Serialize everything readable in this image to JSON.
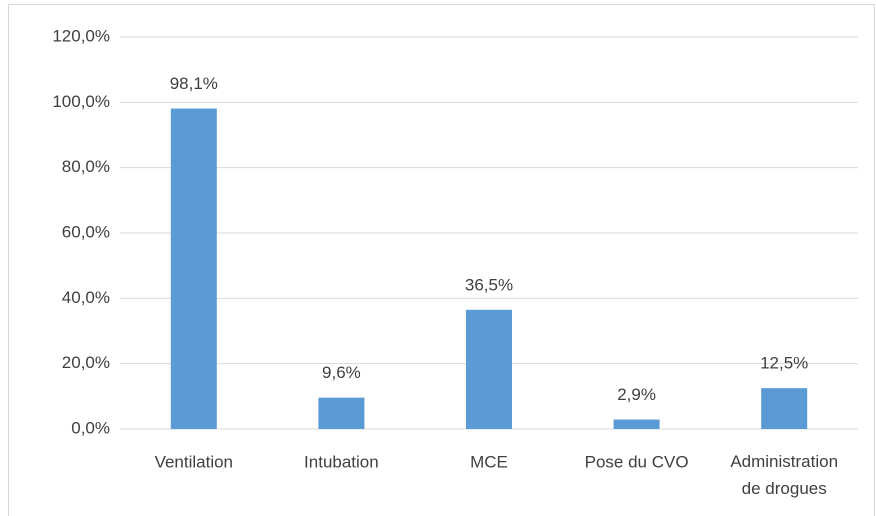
{
  "chart_data": {
    "type": "bar",
    "categories": [
      "Ventilation",
      "Intubation",
      "MCE",
      "Pose du CVO",
      "Administration de drogues"
    ],
    "values": [
      98.1,
      9.6,
      36.5,
      2.9,
      12.5
    ],
    "value_labels": [
      "98,1%",
      "9,6%",
      "36,5%",
      "2,9%",
      "12,5%"
    ],
    "color": "#5b9bd5",
    "ylim": [
      0,
      120
    ],
    "yticks": [
      {
        "value": 0,
        "label": "0,0%"
      },
      {
        "value": 20,
        "label": "20,0%"
      },
      {
        "value": 40,
        "label": "40,0%"
      },
      {
        "value": 60,
        "label": "60,0%"
      },
      {
        "value": 80,
        "label": "80,0%"
      },
      {
        "value": 100,
        "label": "100,0%"
      },
      {
        "value": 120,
        "label": "120,0%"
      }
    ],
    "grid": true
  }
}
